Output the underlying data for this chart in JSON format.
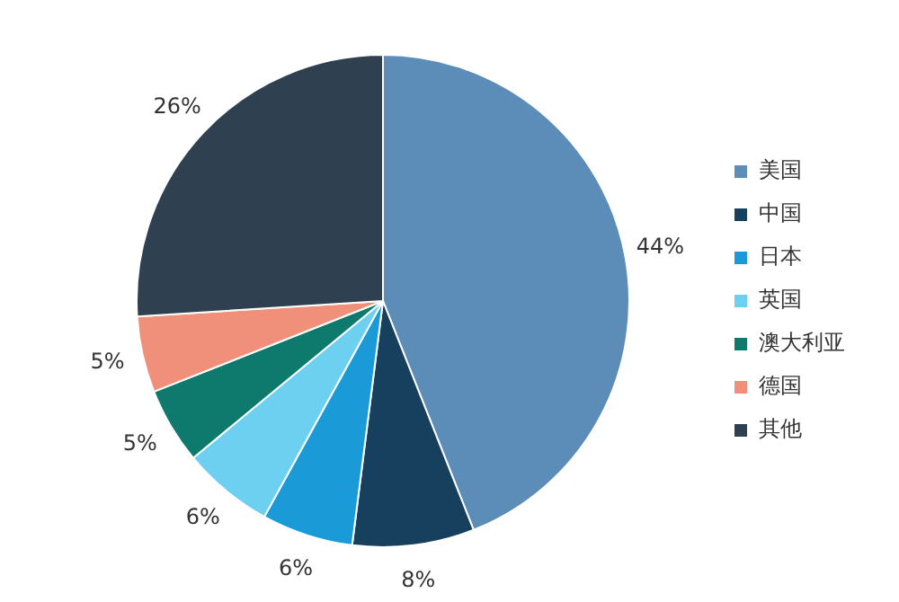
{
  "chart_data": {
    "type": "pie",
    "categories": [
      "美国",
      "中国",
      "日本",
      "英国",
      "澳大利亚",
      "德国",
      "其他"
    ],
    "values": [
      44,
      8,
      6,
      6,
      5,
      5,
      26
    ],
    "value_labels": [
      "44%",
      "8%",
      "6%",
      "6%",
      "5%",
      "5%",
      "26%"
    ],
    "colors": [
      "#5b8db8",
      "#17405e",
      "#1a9bd7",
      "#6dd0f0",
      "#0e7a6e",
      "#f0907a",
      "#2f4050"
    ],
    "legend": "right"
  }
}
